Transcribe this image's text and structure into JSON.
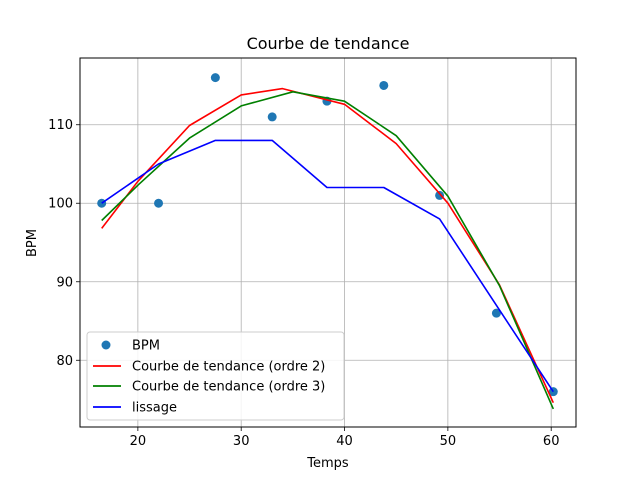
{
  "chart_data": {
    "type": "scatter",
    "title": "Courbe de tendance",
    "xlabel": "Temps",
    "ylabel": "BPM",
    "xlim": [
      14.4,
      62.4
    ],
    "ylim": [
      71.5,
      118.5
    ],
    "xticks": [
      20,
      30,
      40,
      50,
      60
    ],
    "yticks": [
      80,
      90,
      100,
      110
    ],
    "grid": true,
    "legend_position": "lower-left",
    "scatter": {
      "name": "BPM",
      "color": "#1f77b4",
      "x": [
        16.5,
        22,
        27.5,
        33,
        38.3,
        43.8,
        49.2,
        54.7,
        60.2
      ],
      "y": [
        100,
        100,
        116,
        111,
        113,
        115,
        101,
        86,
        76
      ]
    },
    "lines": [
      {
        "name": "Courbe de tendance (ordre 2)",
        "color": "#ff0000",
        "x": [
          16.5,
          20,
          25,
          30,
          34,
          40,
          45,
          50,
          55,
          60.2
        ],
        "y": [
          96.8,
          102.8,
          109.9,
          113.8,
          114.6,
          112.6,
          107.6,
          100.0,
          89.6,
          74.6
        ]
      },
      {
        "name": "Courbe de tendance (ordre 3)",
        "color": "#008000",
        "x": [
          16.5,
          20,
          25,
          30,
          35,
          40,
          45,
          50,
          55,
          60.2
        ],
        "y": [
          97.8,
          102.3,
          108.3,
          112.4,
          114.2,
          113.0,
          108.6,
          100.9,
          89.5,
          73.8
        ]
      },
      {
        "name": "lissage",
        "color": "#0000ff",
        "x": [
          16.5,
          22,
          27.5,
          33,
          38.3,
          43.8,
          49.2,
          54.7,
          60.2
        ],
        "y": [
          100,
          105,
          108,
          108,
          102,
          102,
          98,
          87,
          76
        ]
      }
    ]
  }
}
